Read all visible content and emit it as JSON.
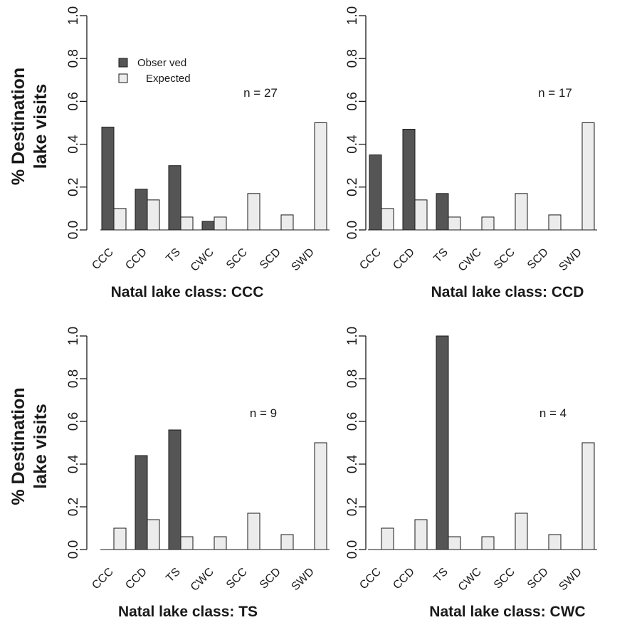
{
  "chart_data": [
    {
      "type": "bar",
      "xlabel": "Natal lake class: CCC",
      "ylabel": "% Destination lake visits",
      "annotation": "n = 27",
      "categories": [
        "CCC",
        "CCD",
        "TS",
        "CWC",
        "SCC",
        "SCD",
        "SWD"
      ],
      "series": [
        {
          "name": "Obser ved",
          "color": "#555555",
          "values": [
            0.48,
            0.19,
            0.3,
            0.04,
            0,
            0,
            0
          ]
        },
        {
          "name": "Expected",
          "color": "#ececec",
          "values": [
            0.1,
            0.14,
            0.06,
            0.06,
            0.17,
            0.07,
            0.5
          ]
        }
      ],
      "ylim": [
        0,
        1
      ],
      "yticks": [
        "0.0",
        "0.2",
        "0.4",
        "0.6",
        "0.8",
        "1.0"
      ],
      "legend": "top-left"
    },
    {
      "type": "bar",
      "xlabel": "Natal lake class: CCD",
      "ylabel": "",
      "annotation": "n = 17",
      "categories": [
        "CCC",
        "CCD",
        "TS",
        "CWC",
        "SCC",
        "SCD",
        "SWD"
      ],
      "series": [
        {
          "color": "#555555",
          "values": [
            0.35,
            0.47,
            0.17,
            0,
            0,
            0,
            0
          ]
        },
        {
          "color": "#ececec",
          "values": [
            0.1,
            0.14,
            0.06,
            0.06,
            0.17,
            0.07,
            0.5
          ]
        }
      ],
      "ylim": [
        0,
        1
      ],
      "yticks": [
        "0.0",
        "0.2",
        "0.4",
        "0.6",
        "0.8",
        "1.0"
      ]
    },
    {
      "type": "bar",
      "xlabel": "Natal lake class: TS",
      "ylabel": "% Destination lake visits",
      "annotation": "n = 9",
      "categories": [
        "CCC",
        "CCD",
        "TS",
        "CWC",
        "SCC",
        "SCD",
        "SWD"
      ],
      "series": [
        {
          "color": "#555555",
          "values": [
            0,
            0.44,
            0.56,
            0,
            0,
            0,
            0
          ]
        },
        {
          "color": "#ececec",
          "values": [
            0.1,
            0.14,
            0.06,
            0.06,
            0.17,
            0.07,
            0.5
          ]
        }
      ],
      "ylim": [
        0,
        1
      ],
      "yticks": [
        "0.0",
        "0.2",
        "0.4",
        "0.6",
        "0.8",
        "1.0"
      ]
    },
    {
      "type": "bar",
      "xlabel": "Natal lake class: CWC",
      "ylabel": "",
      "annotation": "n = 4",
      "categories": [
        "CCC",
        "CCD",
        "TS",
        "CWC",
        "SCC",
        "SCD",
        "SWD"
      ],
      "series": [
        {
          "color": "#555555",
          "values": [
            0,
            0,
            1.0,
            0,
            0,
            0,
            0
          ]
        },
        {
          "color": "#ececec",
          "values": [
            0.1,
            0.14,
            0.06,
            0.06,
            0.17,
            0.07,
            0.5
          ]
        }
      ],
      "ylim": [
        0,
        1
      ],
      "yticks": [
        "0.0",
        "0.2",
        "0.4",
        "0.6",
        "0.8",
        "1.0"
      ]
    }
  ]
}
